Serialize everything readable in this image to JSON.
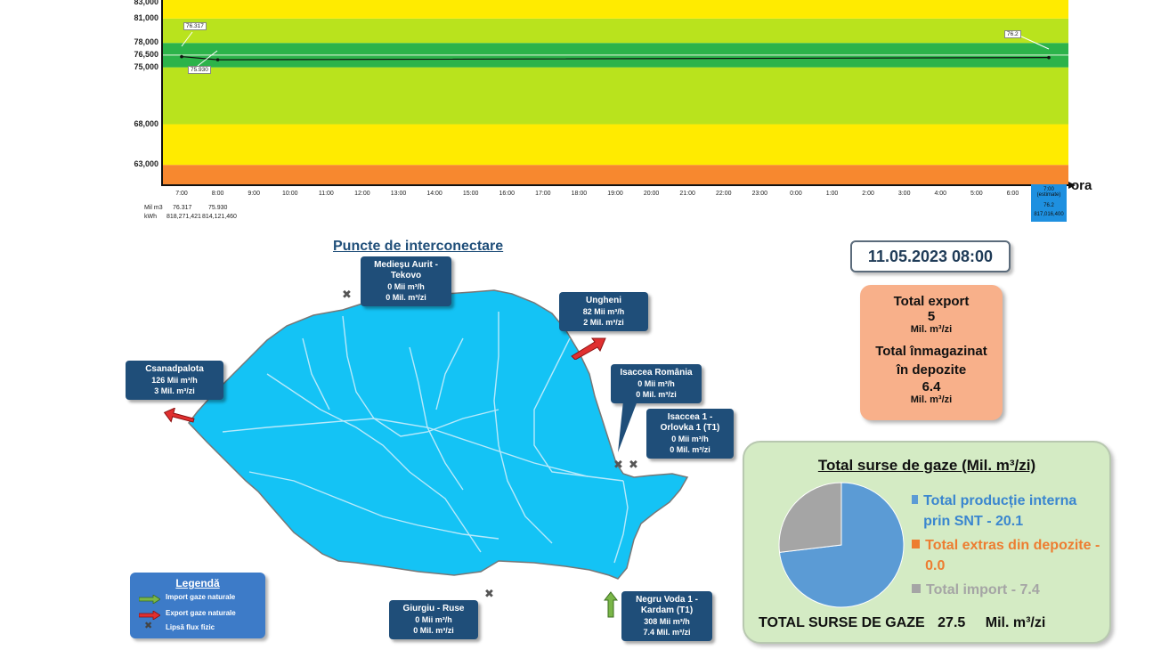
{
  "chart_data": {
    "type": "line",
    "yticks": [
      "63,000",
      "68,000",
      "75,000",
      "76,500",
      "78,000",
      "81,000",
      "83,000"
    ],
    "bands": [
      {
        "from": 60.0,
        "to": 63.0,
        "color": "#f7882f"
      },
      {
        "from": 63.0,
        "to": 68.0,
        "color": "#ffeb00"
      },
      {
        "from": 68.0,
        "to": 75.0,
        "color": "#b9e31d"
      },
      {
        "from": 75.0,
        "to": 78.0,
        "color": "#2cb34a"
      },
      {
        "from": 78.0,
        "to": 81.0,
        "color": "#b9e31d"
      },
      {
        "from": 81.0,
        "to": 83.5,
        "color": "#ffeb00"
      }
    ],
    "ylim": [
      60.5,
      83.5
    ],
    "x": [
      "7:00",
      "8:00",
      "9:00",
      "10:00",
      "11:00",
      "12:00",
      "13:00",
      "14:00",
      "15:00",
      "16:00",
      "17:00",
      "18:00",
      "19:00",
      "20:00",
      "21:00",
      "22:00",
      "23:00",
      "0:00",
      "1:00",
      "2:00",
      "3:00",
      "4:00",
      "5:00",
      "6:00",
      "7:00"
    ],
    "series": [
      {
        "values": [
          76.317,
          75.93,
          null,
          null,
          null,
          null,
          null,
          null,
          null,
          null,
          null,
          null,
          null,
          null,
          null,
          null,
          null,
          null,
          null,
          null,
          null,
          null,
          null,
          null,
          76.2
        ]
      }
    ],
    "point_labels": [
      "76.317",
      "75.930",
      "76.2"
    ],
    "xlabel": "ora",
    "estimate_label": "(estimate)",
    "table": {
      "row1_label": "Mil m3",
      "row1": [
        "76.317",
        "75.930"
      ],
      "row1_last": "76.2",
      "row2_label": "kWh",
      "row2": [
        "818,271,421",
        "814,121,460"
      ],
      "row2_last": "817,016,400"
    }
  },
  "map": {
    "title": "Puncte de interconectare",
    "points": [
      {
        "name": "Medieșu Aurit - Tekovo",
        "flow_h": "0",
        "flow_d": "0"
      },
      {
        "name": "Ungheni",
        "flow_h": "82",
        "flow_d": "2"
      },
      {
        "name": "Csanadpalota",
        "flow_h": "126",
        "flow_d": "3"
      },
      {
        "name": "Isaccea România",
        "flow_h": "0",
        "flow_d": "0"
      },
      {
        "name": "Isaccea 1 - Orlovka 1 (T1)",
        "flow_h": "0",
        "flow_d": "0"
      },
      {
        "name": "Giurgiu - Ruse",
        "flow_h": "0",
        "flow_d": "0"
      },
      {
        "name": "Negru Voda 1 - Kardam (T1)",
        "flow_h": "308",
        "flow_d": "7.4"
      }
    ],
    "unit_h": "Mii  m³/h",
    "unit_d_mil": "Mil. m³/zi",
    "legend": {
      "title": "Legendă",
      "import": "Import gaze naturale",
      "export": "Export gaze naturale",
      "none": "Lipsă flux fizic"
    }
  },
  "datetime": "11.05.2023 08:00",
  "export_panel": {
    "export_label": "Total export",
    "export_value": "5",
    "unit": "Mil. m³/zi",
    "storage_label": "Total înmagazinat în depozite",
    "storage_value": "6.4"
  },
  "sources": {
    "title": "Total surse de gaze  (Mil. m³/zi)",
    "items": [
      {
        "label": "Total producție interna prin SNT - 20.1",
        "value": 20.1,
        "color": "#5b9bd5"
      },
      {
        "label": "Total extras din depozite - 0.0",
        "value": 0.0,
        "color": "#ed7d31"
      },
      {
        "label": "Total import - 7.4",
        "value": 7.4,
        "color": "#a5a5a5"
      }
    ],
    "total_label": "TOTAL SURSE DE GAZE",
    "total_value": "27.5",
    "total_unit": "Mil. m³/zi"
  }
}
